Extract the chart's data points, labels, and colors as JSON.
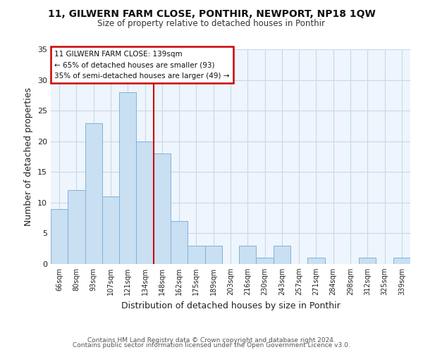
{
  "title": "11, GILWERN FARM CLOSE, PONTHIR, NEWPORT, NP18 1QW",
  "subtitle": "Size of property relative to detached houses in Ponthir",
  "xlabel": "Distribution of detached houses by size in Ponthir",
  "ylabel": "Number of detached properties",
  "bar_labels": [
    "66sqm",
    "80sqm",
    "93sqm",
    "107sqm",
    "121sqm",
    "134sqm",
    "148sqm",
    "162sqm",
    "175sqm",
    "189sqm",
    "203sqm",
    "216sqm",
    "230sqm",
    "243sqm",
    "257sqm",
    "271sqm",
    "284sqm",
    "298sqm",
    "312sqm",
    "325sqm",
    "339sqm"
  ],
  "bar_values": [
    9,
    12,
    23,
    11,
    28,
    20,
    18,
    7,
    3,
    3,
    0,
    3,
    1,
    3,
    0,
    1,
    0,
    0,
    1,
    0,
    1
  ],
  "bar_color": "#c9dff2",
  "bar_edge_color": "#7fb3d9",
  "vline_color": "#cc0000",
  "vline_position": 5.5,
  "ylim": [
    0,
    35
  ],
  "yticks": [
    0,
    5,
    10,
    15,
    20,
    25,
    30,
    35
  ],
  "annotation_line1": "11 GILWERN FARM CLOSE: 139sqm",
  "annotation_line2": "← 65% of detached houses are smaller (93)",
  "annotation_line3": "35% of semi-detached houses are larger (49) →",
  "footer_line1": "Contains HM Land Registry data © Crown copyright and database right 2024.",
  "footer_line2": "Contains public sector information licensed under the Open Government Licence v3.0.",
  "grid_color": "#c8d8e8",
  "background_color": "#eef5fc",
  "page_background": "#ffffff"
}
